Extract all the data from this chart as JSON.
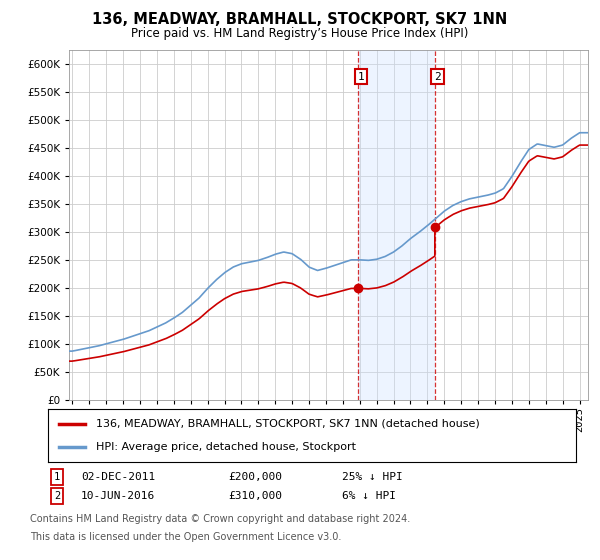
{
  "title": "136, MEADWAY, BRAMHALL, STOCKPORT, SK7 1NN",
  "subtitle": "Price paid vs. HM Land Registry’s House Price Index (HPI)",
  "ylabel_ticks": [
    0,
    50000,
    100000,
    150000,
    200000,
    250000,
    300000,
    350000,
    400000,
    450000,
    500000,
    550000,
    600000
  ],
  "ylim": [
    0,
    625000
  ],
  "xlim_start": 1994.8,
  "xlim_end": 2025.5,
  "sale1_x": 2011.917,
  "sale1_y": 200000,
  "sale2_x": 2016.44,
  "sale2_y": 310000,
  "legend1": "136, MEADWAY, BRAMHALL, STOCKPORT, SK7 1NN (detached house)",
  "legend2": "HPI: Average price, detached house, Stockport",
  "footnote1": "Contains HM Land Registry data © Crown copyright and database right 2024.",
  "footnote2": "This data is licensed under the Open Government Licence v3.0.",
  "red_color": "#cc0000",
  "blue_color": "#6699cc",
  "shade_color": "#cce0ff",
  "background_color": "#ffffff",
  "grid_color": "#cccccc",
  "title_fontsize": 10.5,
  "subtitle_fontsize": 8.5,
  "tick_fontsize": 7.5,
  "legend_fontsize": 8,
  "footnote_fontsize": 7,
  "years_hpi": [
    1995.0,
    1995.5,
    1996.0,
    1996.5,
    1997.0,
    1997.5,
    1998.0,
    1998.5,
    1999.0,
    1999.5,
    2000.0,
    2000.5,
    2001.0,
    2001.5,
    2002.0,
    2002.5,
    2003.0,
    2003.5,
    2004.0,
    2004.5,
    2005.0,
    2005.5,
    2006.0,
    2006.5,
    2007.0,
    2007.5,
    2008.0,
    2008.5,
    2009.0,
    2009.5,
    2010.0,
    2010.5,
    2011.0,
    2011.5,
    2012.0,
    2012.5,
    2013.0,
    2013.5,
    2014.0,
    2014.5,
    2015.0,
    2015.5,
    2016.0,
    2016.5,
    2017.0,
    2017.5,
    2018.0,
    2018.5,
    2019.0,
    2019.5,
    2020.0,
    2020.5,
    2021.0,
    2021.5,
    2022.0,
    2022.5,
    2023.0,
    2023.5,
    2024.0,
    2024.5,
    2025.0
  ],
  "hpi_values": [
    88000,
    91000,
    94000,
    97000,
    101000,
    105000,
    109000,
    114000,
    119000,
    124000,
    131000,
    138000,
    147000,
    157000,
    170000,
    183000,
    200000,
    215000,
    228000,
    238000,
    244000,
    247000,
    250000,
    255000,
    261000,
    265000,
    262000,
    252000,
    238000,
    232000,
    236000,
    241000,
    246000,
    251000,
    251000,
    250000,
    252000,
    257000,
    265000,
    276000,
    289000,
    300000,
    312000,
    325000,
    338000,
    348000,
    355000,
    360000,
    363000,
    366000,
    370000,
    378000,
    400000,
    425000,
    448000,
    458000,
    455000,
    452000,
    456000,
    468000,
    478000
  ],
  "hpi_at_sale1": 251000,
  "hpi_at_sale2": 325000
}
